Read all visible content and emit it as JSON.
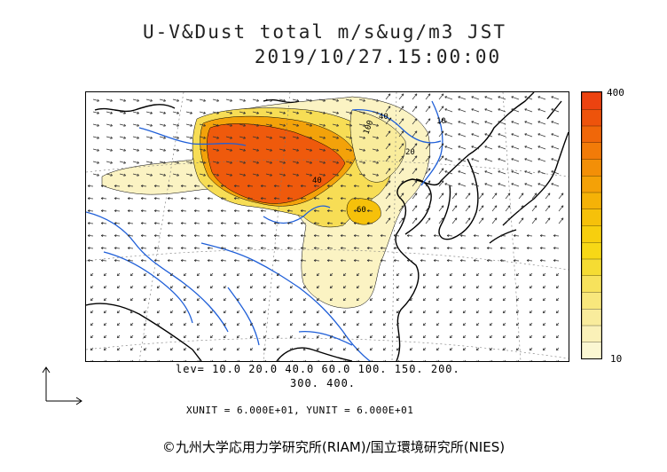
{
  "title": {
    "line1": "U-V&Dust total m/s&ug/m3 JST",
    "line2": "2019/10/27.15:00:00"
  },
  "colorbar": {
    "max_label": "400",
    "min_label": "10",
    "colors": [
      "#fbf7d2",
      "#faf1b8",
      "#f9ec9c",
      "#f8e77c",
      "#f7e25c",
      "#f5dc33",
      "#f7d816",
      "#f7cf0e",
      "#f6c10a",
      "#f5b207",
      "#f4a107",
      "#f38f07",
      "#f27b08",
      "#f06709",
      "#ee530b",
      "#ec4310"
    ]
  },
  "levels": {
    "line1": "lev= 10.0 20.0 40.0 60.0 100. 150. 200.",
    "line2": "300. 400."
  },
  "units": "XUNIT = 6.000E+01, YUNIT = 6.000E+01",
  "copyright": "©九州大学応用力学研究所(RIAM)/国立環境研究所(NIES)",
  "contour_labels": [
    "100",
    "40",
    "20",
    "10",
    "40.",
    "60"
  ],
  "map_colors": {
    "coast": "#000000",
    "rivers": "#1f5fd8",
    "dust_low": "#fbf3c3",
    "dust_mid": "#f7dd55",
    "dust_high": "#f3a20a",
    "dust_max": "#ef5a0c"
  }
}
